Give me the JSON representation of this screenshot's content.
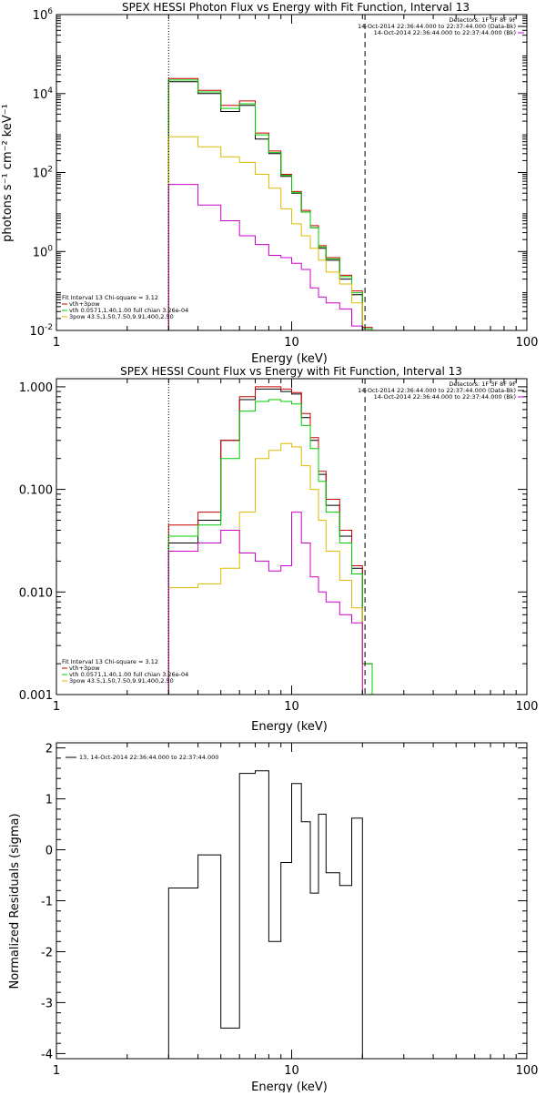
{
  "chart_data": [
    {
      "type": "line",
      "title": "SPEX HESSI Photon Flux vs Energy with Fit Function, Interval 13",
      "xlabel": "Energy (keV)",
      "ylabel": "photons s⁻¹ cm⁻² keV⁻¹",
      "xscale": "log",
      "yscale": "log",
      "xlim": [
        1,
        100
      ],
      "ylim": [
        0.01,
        1000000
      ],
      "xticks": [
        {
          "v": 1,
          "label": "1"
        },
        {
          "v": 10,
          "label": "10"
        },
        {
          "v": 100,
          "label": "100"
        }
      ],
      "yticks": [
        {
          "v": 0.01,
          "b": "10",
          "e": "-2"
        },
        {
          "v": 1,
          "b": "10",
          "e": "0"
        },
        {
          "v": 100,
          "b": "10",
          "e": "2"
        },
        {
          "v": 10000,
          "b": "10",
          "e": "4"
        },
        {
          "v": 1000000,
          "b": "10",
          "e": "6"
        }
      ],
      "ref_lines": [
        {
          "x": 3.0,
          "style": "dotted"
        },
        {
          "x": 20.5,
          "style": "dashed"
        }
      ],
      "legend_top": [
        {
          "text": "Detectors: 1F 3F 8F 9F",
          "color": ""
        },
        {
          "text": "14-Oct-2014 22:36:44.000 to 22:37:44.000 (Data-Bk)",
          "color": "#000000"
        },
        {
          "text": "14-Oct-2014 22:36:44.000 to 22:37:44.000 (Bk)",
          "color": "#cc00cc"
        }
      ],
      "legend_bottom": [
        {
          "text": "Fit Interval 13    Chi-square = 3.12",
          "color": ""
        },
        {
          "text": "vth+3pow",
          "color": "#cc0000"
        },
        {
          "text": "vth 0.0571,1.40,1.00  full chian 3.26e-04",
          "color": "#00cc00"
        },
        {
          "text": "3pow 43.5,1.50,7.50,9.91,400,2.50",
          "color": "#ddbb00"
        }
      ],
      "edges": [
        3.0,
        4.0,
        5.0,
        6.0,
        7.0,
        8.0,
        9.0,
        10.0,
        11.0,
        12.0,
        13.0,
        14.0,
        16.0,
        18.0,
        20.0,
        22.0,
        25.0
      ],
      "series": [
        {
          "color": "#000000",
          "values": [
            20000,
            10000,
            3500,
            5000,
            700,
            300,
            80,
            30,
            10,
            4,
            1.2,
            0.6,
            0.2,
            0.08
          ]
        },
        {
          "color": "#cc0000",
          "values": [
            24000,
            12000,
            5000,
            6500,
            1000,
            350,
            90,
            33,
            11,
            4.5,
            1.4,
            0.7,
            0.25,
            0.1,
            0.012,
            0.008
          ]
        },
        {
          "color": "#00cc00",
          "values": [
            22000,
            11000,
            4200,
            5500,
            900,
            320,
            85,
            31,
            10,
            4,
            1.3,
            0.65,
            0.23,
            0.09,
            0.011,
            0.007
          ]
        },
        {
          "color": "#ddbb00",
          "values": [
            800,
            450,
            250,
            180,
            90,
            40,
            12,
            5,
            2.5,
            1.2,
            0.6,
            0.3,
            0.15,
            0.05,
            0.007,
            0.005
          ]
        },
        {
          "color": "#cc00cc",
          "values": [
            50,
            15,
            6,
            2.5,
            1.5,
            0.8,
            0.7,
            0.5,
            0.35,
            0.12,
            0.07,
            0.05,
            0.035,
            0.013
          ]
        }
      ]
    },
    {
      "type": "line",
      "title": "SPEX HESSI Count Flux vs Energy with Fit Function, Interval 13",
      "xlabel": "Energy (keV)",
      "ylabel": "",
      "xscale": "log",
      "yscale": "log",
      "xlim": [
        1,
        100
      ],
      "ylim": [
        0.001,
        1.2
      ],
      "xticks": [
        {
          "v": 1,
          "label": "1"
        },
        {
          "v": 10,
          "label": "10"
        },
        {
          "v": 100,
          "label": "100"
        }
      ],
      "yticks": [
        {
          "v": 0.001,
          "label": "0.001"
        },
        {
          "v": 0.01,
          "label": "0.010"
        },
        {
          "v": 0.1,
          "label": "0.100"
        },
        {
          "v": 1.0,
          "label": "1.000"
        }
      ],
      "ref_lines": [
        {
          "x": 3.0,
          "style": "dotted"
        },
        {
          "x": 20.5,
          "style": "dashed"
        }
      ],
      "legend_top": [
        {
          "text": "Detectors: 1F 3F 8F 9F",
          "color": ""
        },
        {
          "text": "14-Oct-2014 22:36:44.000 to 22:37:44.000 (Data-Bk)",
          "color": "#000000"
        },
        {
          "text": "14-Oct-2014 22:36:44.000 to 22:37:44.000 (Bk)",
          "color": "#cc00cc"
        }
      ],
      "legend_bottom": [
        {
          "text": "Fit Interval 13    Chi-square = 3.12",
          "color": ""
        },
        {
          "text": "vth+3pow",
          "color": "#cc0000"
        },
        {
          "text": "vth 0.0571,1.40,1.00  full chian 3.26e-04",
          "color": "#00cc00"
        },
        {
          "text": "3pow 43.5,1.50,7.50,9.91,400,2.50",
          "color": "#ddbb00"
        }
      ],
      "edges": [
        3.0,
        4.0,
        5.0,
        6.0,
        7.0,
        8.0,
        9.0,
        10.0,
        11.0,
        12.0,
        13.0,
        14.0,
        16.0,
        18.0,
        20.0,
        22.0,
        25.0
      ],
      "series": [
        {
          "color": "#000000",
          "values": [
            0.03,
            0.05,
            0.3,
            0.75,
            0.95,
            0.95,
            0.9,
            0.85,
            0.5,
            0.3,
            0.14,
            0.07,
            0.035,
            0.017,
            0.002,
            0.001
          ]
        },
        {
          "color": "#cc0000",
          "values": [
            0.045,
            0.06,
            0.3,
            0.8,
            1.0,
            1.0,
            0.95,
            0.88,
            0.55,
            0.32,
            0.15,
            0.08,
            0.04,
            0.018,
            0.002,
            0.001
          ]
        },
        {
          "color": "#00cc00",
          "values": [
            0.035,
            0.045,
            0.2,
            0.58,
            0.72,
            0.75,
            0.72,
            0.68,
            0.42,
            0.25,
            0.12,
            0.06,
            0.03,
            0.015,
            0.002
          ]
        },
        {
          "color": "#ddbb00",
          "values": [
            0.011,
            0.012,
            0.017,
            0.06,
            0.2,
            0.24,
            0.28,
            0.26,
            0.17,
            0.1,
            0.05,
            0.025,
            0.013,
            0.007
          ]
        },
        {
          "color": "#cc00cc",
          "values": [
            0.025,
            0.03,
            0.04,
            0.024,
            0.02,
            0.016,
            0.018,
            0.06,
            0.03,
            0.014,
            0.01,
            0.008,
            0.006,
            0.005
          ]
        }
      ]
    },
    {
      "type": "line",
      "title": "",
      "xlabel": "Energy (keV)",
      "ylabel": "Normalized Residuals (sigma)",
      "xscale": "log",
      "yscale": "linear",
      "xlim": [
        1,
        100
      ],
      "ylim": [
        -4.1,
        2.1
      ],
      "xticks": [
        {
          "v": 1,
          "label": "1"
        },
        {
          "v": 10,
          "label": "10"
        },
        {
          "v": 100,
          "label": "100"
        }
      ],
      "yticks": [
        {
          "v": -4,
          "label": "-4"
        },
        {
          "v": -3,
          "label": "-3"
        },
        {
          "v": -2,
          "label": "-2"
        },
        {
          "v": -1,
          "label": "-1"
        },
        {
          "v": 0,
          "label": "0"
        },
        {
          "v": 1,
          "label": "1"
        },
        {
          "v": 2,
          "label": "2"
        }
      ],
      "legend_top_left": [
        {
          "text": "13, 14-Oct-2014 22:36:44.000 to 22:37:44.000",
          "color": "#000000"
        }
      ],
      "edges": [
        3.0,
        4.0,
        5.0,
        6.0,
        7.0,
        8.0,
        9.0,
        10.0,
        11.0,
        12.0,
        13.0,
        14.0,
        16.0,
        18.0,
        20.0
      ],
      "series": [
        {
          "color": "#000000",
          "values": [
            -0.75,
            -0.1,
            -3.5,
            1.5,
            1.55,
            -1.8,
            -0.25,
            1.3,
            0.55,
            -0.85,
            0.7,
            -0.45,
            -0.7,
            0.62
          ]
        }
      ]
    }
  ]
}
